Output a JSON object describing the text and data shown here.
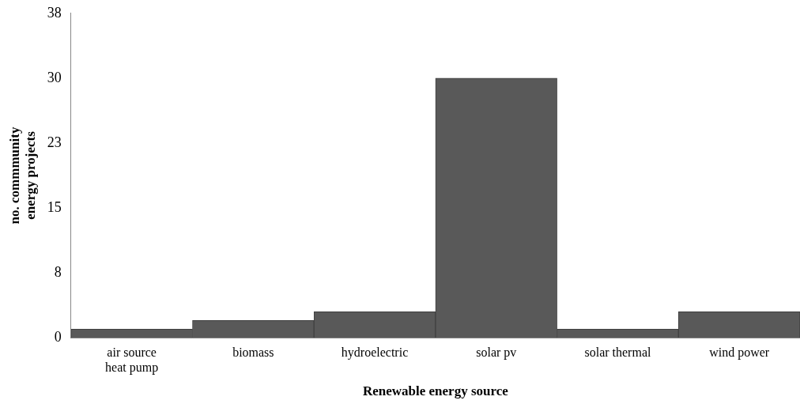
{
  "chart_data": {
    "type": "bar",
    "xlabel": "Renewable energy source",
    "ylabel": "no. commmunity energy projects",
    "categories": [
      "air source heat pump",
      "biomass",
      "hydroelectric",
      "solar pv",
      "solar thermal",
      "wind power"
    ],
    "values": [
      1,
      2,
      3,
      30,
      1,
      3
    ],
    "color": "#595959",
    "ylim": [
      0,
      37.5
    ],
    "yticks": [
      0,
      {
        "value": 7.5,
        "label": "8"
      },
      15,
      {
        "value": 22.5,
        "label": "23"
      },
      30,
      {
        "value": 37.5,
        "label": "38"
      }
    ],
    "grid": false,
    "legend": false
  }
}
